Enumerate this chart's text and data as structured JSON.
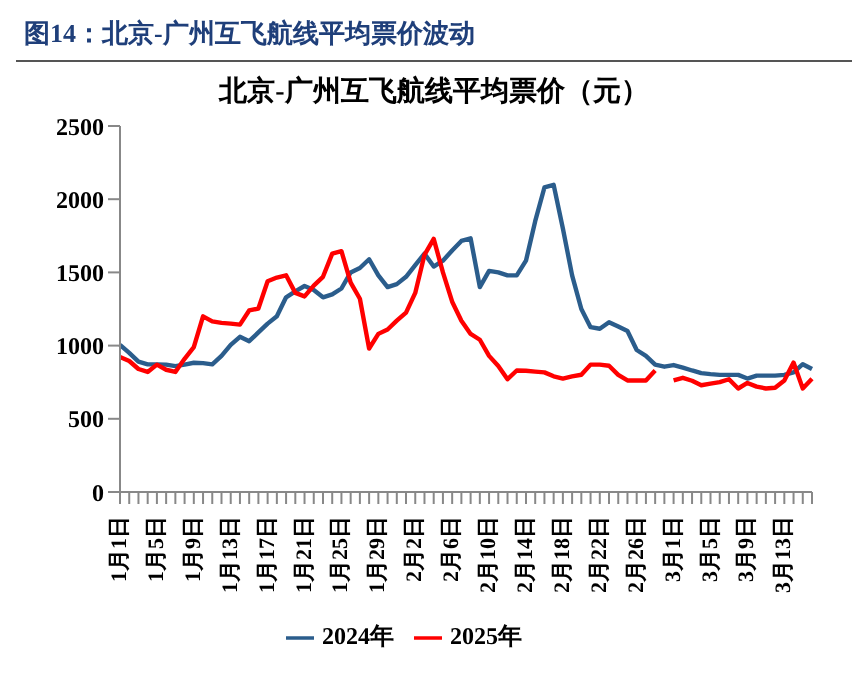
{
  "chart_data": {
    "type": "line",
    "title": "图14：北京-广州互飞航线平均票价波动",
    "subtitle": "北京-广州互飞航线平均票价（元）",
    "categories": [
      "1月1日",
      null,
      null,
      null,
      "1月5日",
      null,
      null,
      null,
      "1月9日",
      null,
      null,
      null,
      "1月13日",
      null,
      null,
      null,
      "1月17日",
      null,
      null,
      null,
      "1月21日",
      null,
      null,
      null,
      "1月25日",
      null,
      null,
      null,
      "1月29日",
      null,
      null,
      null,
      "2月2日",
      null,
      null,
      null,
      "2月6日",
      null,
      null,
      null,
      "2月10日",
      null,
      null,
      null,
      "2月14日",
      null,
      null,
      null,
      "2月18日",
      null,
      null,
      null,
      "2月22日",
      null,
      null,
      null,
      "2月26日",
      null,
      null,
      null,
      "3月1日",
      null,
      null,
      null,
      "3月5日",
      null,
      null,
      null,
      "3月9日",
      null,
      null,
      null,
      "3月13日",
      null,
      null,
      null
    ],
    "series": [
      {
        "name": "2024年",
        "color": "#2b5d8c",
        "values": [
          1005,
          950,
          890,
          872,
          872,
          870,
          860,
          870,
          883,
          880,
          872,
          930,
          1005,
          1060,
          1030,
          1090,
          1150,
          1200,
          1330,
          1370,
          1407,
          1380,
          1330,
          1350,
          1390,
          1500,
          1530,
          1590,
          1480,
          1400,
          1420,
          1470,
          1550,
          1628,
          1540,
          1580,
          1650,
          1715,
          1733,
          1400,
          1510,
          1500,
          1480,
          1480,
          1580,
          1850,
          2080,
          2098,
          1800,
          1480,
          1250,
          1126,
          1115,
          1160,
          1130,
          1100,
          970,
          930,
          870,
          856,
          867,
          850,
          830,
          812,
          805,
          800,
          800,
          800,
          775,
          795,
          795,
          795,
          800,
          817,
          873,
          840
        ]
      },
      {
        "name": "2025年",
        "color": "#ff0000",
        "values": [
          922,
          895,
          840,
          820,
          870,
          835,
          820,
          910,
          990,
          1200,
          1165,
          1155,
          1150,
          1143,
          1240,
          1253,
          1440,
          1465,
          1480,
          1360,
          1336,
          1410,
          1470,
          1628,
          1645,
          1430,
          1320,
          980,
          1080,
          1110,
          1170,
          1225,
          1360,
          1620,
          1729,
          1500,
          1300,
          1170,
          1080,
          1040,
          930,
          860,
          770,
          830,
          828,
          822,
          817,
          790,
          775,
          790,
          801,
          870,
          870,
          862,
          800,
          762,
          762,
          762,
          830,
          null,
          762,
          780,
          760,
          729,
          740,
          750,
          770,
          707,
          745,
          720,
          707,
          712,
          762,
          884,
          707,
          773
        ]
      }
    ],
    "ylim": [
      0,
      2500
    ],
    "yticks": [
      0,
      500,
      1000,
      1500,
      2000,
      2500
    ],
    "grid": false,
    "legend": "bottom",
    "marker": "none",
    "line_style": "solid"
  }
}
